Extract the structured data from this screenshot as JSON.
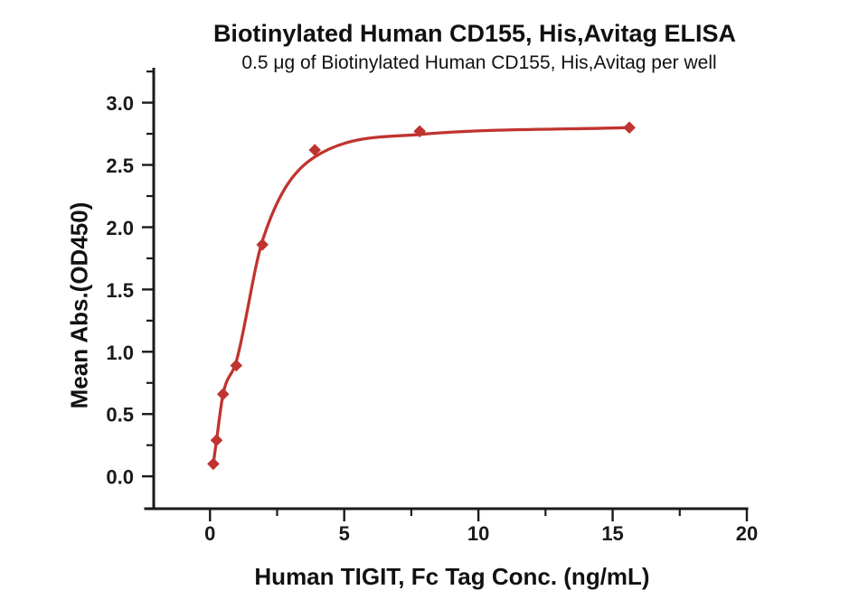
{
  "chart_data": {
    "type": "scatter",
    "title": "Biotinylated Human CD155, His,Avitag ELISA",
    "subtitle": "0.5 μg of Biotinylated Human CD155, His,Avitag per well",
    "xlabel": "Human TIGIT, Fc Tag Conc. (ng/mL)",
    "ylabel": "Mean Abs.(OD450)",
    "x": [
      0.122,
      0.244,
      0.488,
      0.977,
      1.953,
      3.906,
      7.813,
      15.625
    ],
    "y": [
      0.1,
      0.29,
      0.66,
      0.89,
      1.86,
      2.62,
      2.77,
      2.8
    ],
    "fit_curve_y": [
      0.1,
      0.29,
      0.66,
      0.92,
      1.89,
      2.565,
      2.745,
      2.8
    ],
    "xlim": [
      -2.4,
      20
    ],
    "ylim": [
      -0.26,
      3.28
    ],
    "x_major_ticks": [
      0,
      5,
      10,
      15,
      20
    ],
    "x_tick_labels": [
      "0",
      "5",
      "10",
      "15",
      "20"
    ],
    "x_minor_ticks": [
      2.5,
      7.5,
      12.5,
      17.5
    ],
    "y_major_ticks": [
      0,
      0.5,
      1,
      1.5,
      2,
      2.5,
      3
    ],
    "y_tick_labels": [
      "0.0",
      "0.5",
      "1.0",
      "1.5",
      "2.0",
      "2.5",
      "3.0"
    ],
    "y_minor_ticks": [
      0.25,
      0.75,
      1.25,
      1.75,
      2.25,
      2.75,
      3.25
    ],
    "grid": false,
    "legend": "none",
    "marker": "diamond",
    "colors": {
      "curve": "#C0342F",
      "marker": "#C0342F",
      "axis": "#1a1a1a",
      "text": "#111111",
      "background": "#FFFFFF"
    }
  }
}
